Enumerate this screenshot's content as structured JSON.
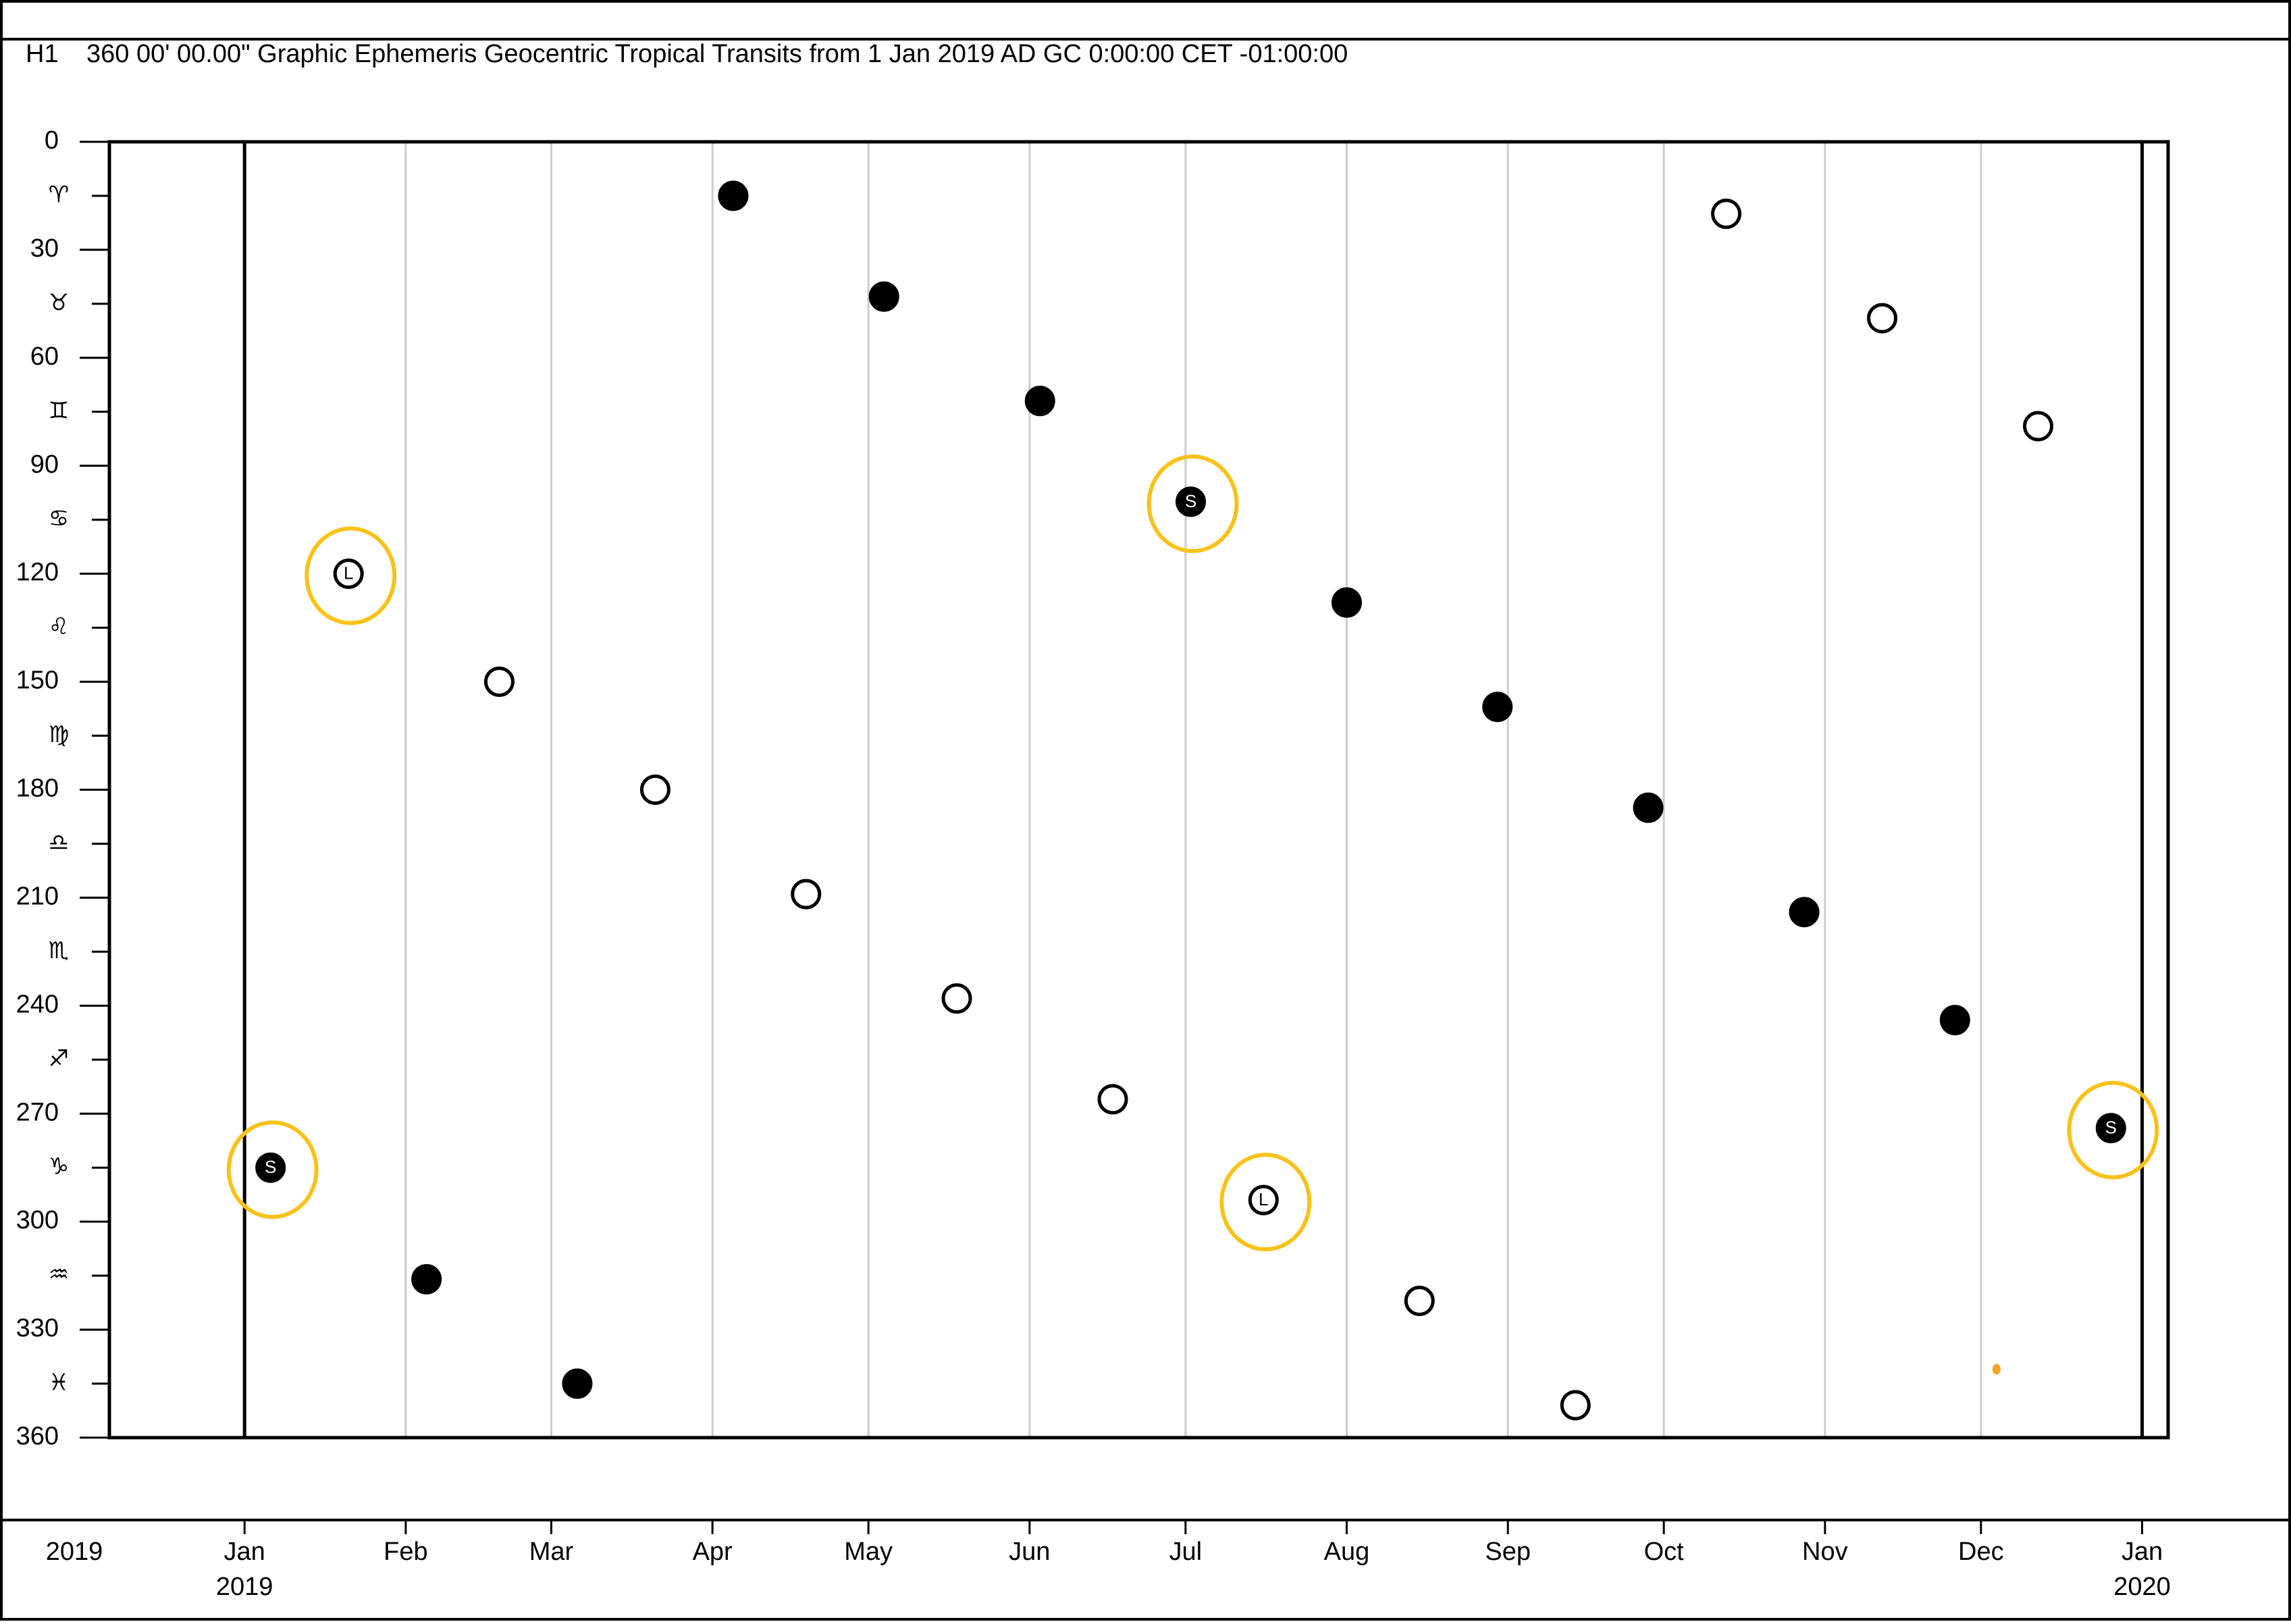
{
  "chart_data": {
    "type": "scatter",
    "chart_id": "H1",
    "title": "360 00' 00.00\" Graphic Ephemeris Geocentric Tropical Transits from 1 Jan 2019 AD GC 0:00:00 CET -01:00:00",
    "xlabel": "2019",
    "xlim": [
      "2018-12-06",
      "2020-01-06"
    ],
    "xticks": [
      {
        "value": "2019-01-01",
        "label": "Jan"
      },
      {
        "value": "2019-02-01",
        "label": "Feb"
      },
      {
        "value": "2019-03-01",
        "label": "Mar"
      },
      {
        "value": "2019-04-01",
        "label": "Apr"
      },
      {
        "value": "2019-05-01",
        "label": "May"
      },
      {
        "value": "2019-06-01",
        "label": "Jun"
      },
      {
        "value": "2019-07-01",
        "label": "Jul"
      },
      {
        "value": "2019-08-01",
        "label": "Aug"
      },
      {
        "value": "2019-09-01",
        "label": "Sep"
      },
      {
        "value": "2019-10-01",
        "label": "Oct"
      },
      {
        "value": "2019-11-01",
        "label": "Nov"
      },
      {
        "value": "2019-12-01",
        "label": "Dec"
      },
      {
        "value": "2020-01-01",
        "label": "Jan"
      }
    ],
    "year_labels": [
      {
        "value": "2019-01-01",
        "label": "2019"
      },
      {
        "value": "2020-01-01",
        "label": "2020"
      }
    ],
    "ylim": [
      0,
      360
    ],
    "yticks": [
      0,
      30,
      60,
      90,
      120,
      150,
      180,
      210,
      240,
      270,
      300,
      330,
      360
    ],
    "sign_ticks": [
      {
        "value": 15,
        "label": "♈"
      },
      {
        "value": 45,
        "label": "♉"
      },
      {
        "value": 75,
        "label": "♊"
      },
      {
        "value": 105,
        "label": "♋"
      },
      {
        "value": 135,
        "label": "♌"
      },
      {
        "value": 165,
        "label": "♍"
      },
      {
        "value": 195,
        "label": "♎"
      },
      {
        "value": 225,
        "label": "♏"
      },
      {
        "value": 255,
        "label": "♐"
      },
      {
        "value": 285,
        "label": "♑"
      },
      {
        "value": 315,
        "label": "♒"
      },
      {
        "value": 345,
        "label": "♓"
      }
    ],
    "grid": true,
    "series": [
      {
        "color": "#000000",
        "filled": true,
        "x": [
          "2019-01-06",
          "2019-02-05",
          "2019-03-06",
          "2019-04-05",
          "2019-05-04",
          "2019-06-03",
          "2019-07-02",
          "2019-08-01",
          "2019-08-30",
          "2019-09-28",
          "2019-10-28",
          "2019-11-26",
          "2019-12-26"
        ],
        "values": [
          285,
          316,
          345,
          15,
          43,
          72,
          100,
          128,
          157,
          185,
          214,
          244,
          274
        ],
        "point_labels": [
          "S",
          null,
          null,
          null,
          null,
          null,
          "S",
          null,
          null,
          null,
          null,
          null,
          "S"
        ]
      },
      {
        "color": "#000000",
        "filled": false,
        "x": [
          "2019-01-21",
          "2019-02-19",
          "2019-03-21",
          "2019-04-19",
          "2019-05-18",
          "2019-06-17",
          "2019-07-16",
          "2019-08-15",
          "2019-09-14",
          "2019-10-13",
          "2019-11-12",
          "2019-12-12"
        ],
        "values": [
          120,
          150,
          180,
          209,
          238,
          266,
          294,
          322,
          351,
          20,
          49,
          79
        ],
        "point_labels": [
          "L",
          null,
          null,
          null,
          null,
          null,
          "L",
          null,
          null,
          null,
          null,
          null
        ]
      },
      {
        "color": "#f5a623",
        "filled": true,
        "x": [
          "2019-12-04"
        ],
        "values": [
          341
        ]
      }
    ],
    "highlight_color": "#f8c21c"
  }
}
